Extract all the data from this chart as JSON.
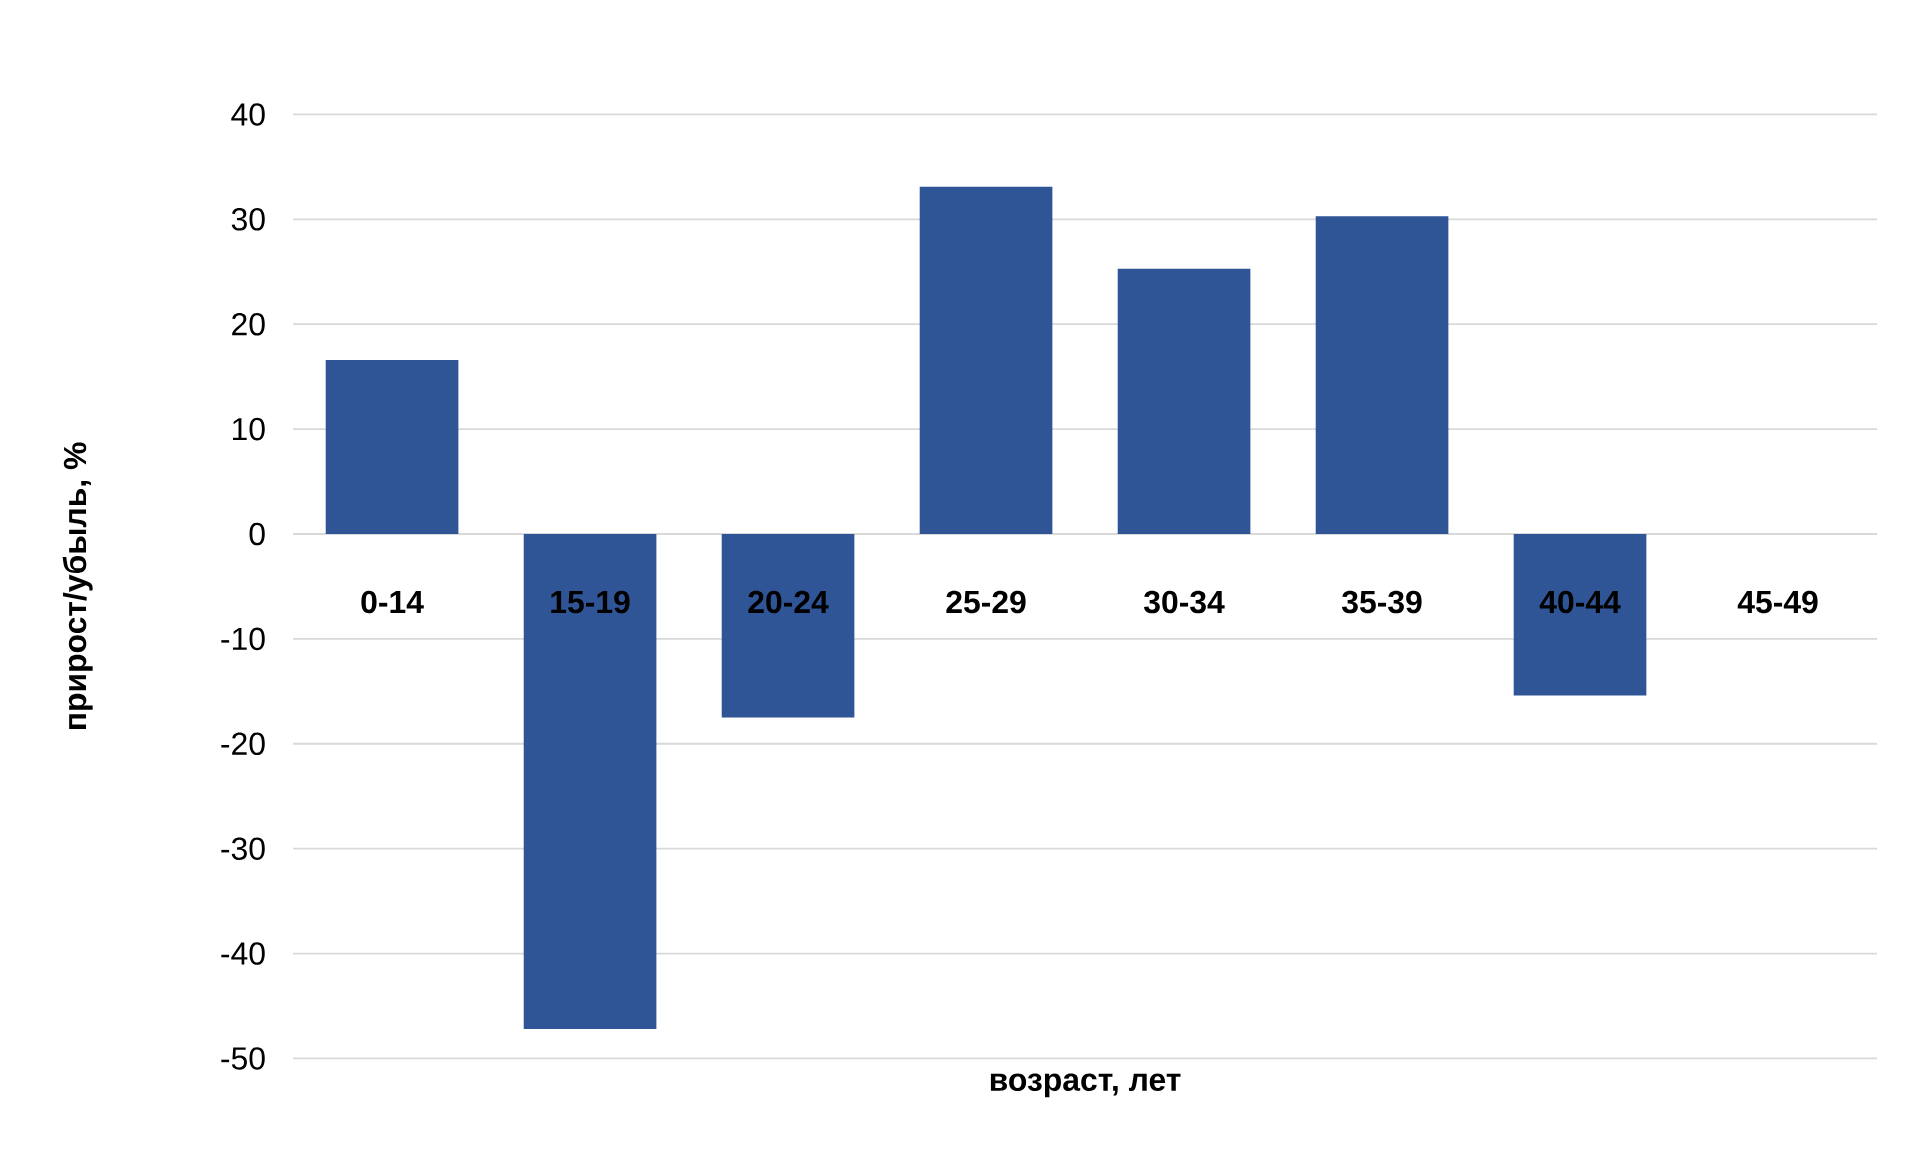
{
  "chart_data": {
    "type": "bar",
    "xlabel": "возраст, лет",
    "ylabel": "прирост/убыль, %",
    "categories": [
      "0-14",
      "15-19",
      "20-24",
      "25-29",
      "30-34",
      "35-39",
      "40-44",
      "45-49"
    ],
    "values": [
      16.6,
      -47.2,
      -17.5,
      33.1,
      25.3,
      30.3,
      -15.4,
      0
    ],
    "color": "#2f5597",
    "ylim": [
      -50,
      40
    ],
    "yticks": [
      -50,
      -40,
      -30,
      -20,
      -10,
      0,
      10,
      20,
      30,
      40
    ],
    "grid": "y"
  }
}
